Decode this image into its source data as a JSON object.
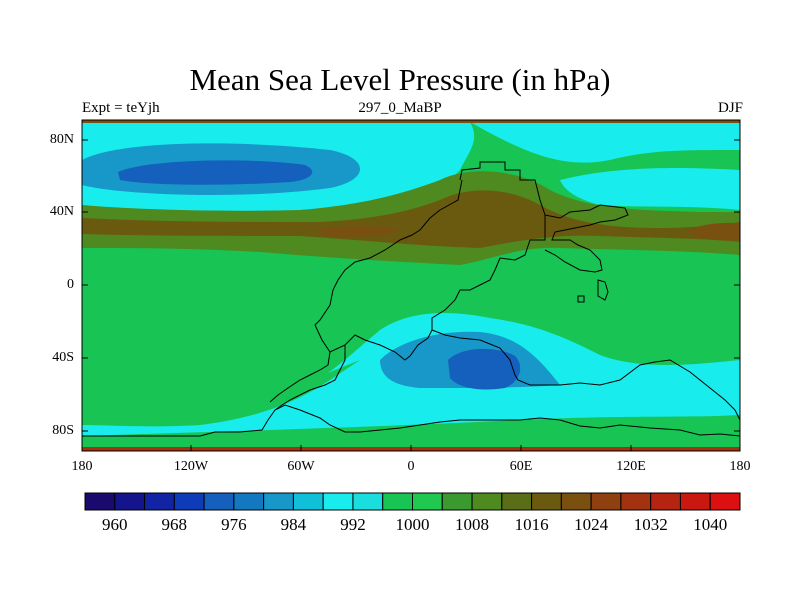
{
  "title": "Mean Sea Level Pressure (in hPa)",
  "subtitle_left": "Expt = teYjh",
  "subtitle_center": "297_0_MaBP",
  "subtitle_right": "DJF",
  "axes": {
    "lat_ticks": [
      "80N",
      "40N",
      "0",
      "40S",
      "80S"
    ],
    "lon_ticks": [
      "180",
      "120W",
      "60W",
      "0",
      "60E",
      "120E",
      "180"
    ],
    "lon_range": [
      -180,
      180
    ],
    "lat_range": [
      -90,
      90
    ]
  },
  "colorbar": {
    "labels": [
      "960",
      "968",
      "976",
      "984",
      "992",
      "1000",
      "1008",
      "1016",
      "1024",
      "1032",
      "1040"
    ],
    "colors": [
      "#1a0a6e",
      "#14148c",
      "#1024a4",
      "#0e3cb8",
      "#1560bc",
      "#1278c0",
      "#1898c8",
      "#10c0d8",
      "#18ecec",
      "#1adede",
      "#18c454",
      "#20c850",
      "#3a9a30",
      "#4e8a20",
      "#5a6e18",
      "#6a5a10",
      "#7a5010",
      "#8e4010",
      "#a23210",
      "#b42410",
      "#c81810",
      "#dc1010"
    ]
  },
  "map_colors": {
    "ocean_low": "#18ecec",
    "mid": "#18c454",
    "high": "#4e8a20",
    "higher": "#6a5a10",
    "highest": "#7a5010",
    "low1": "#10c0d8",
    "low2": "#1278c0",
    "low3": "#1560bc"
  }
}
